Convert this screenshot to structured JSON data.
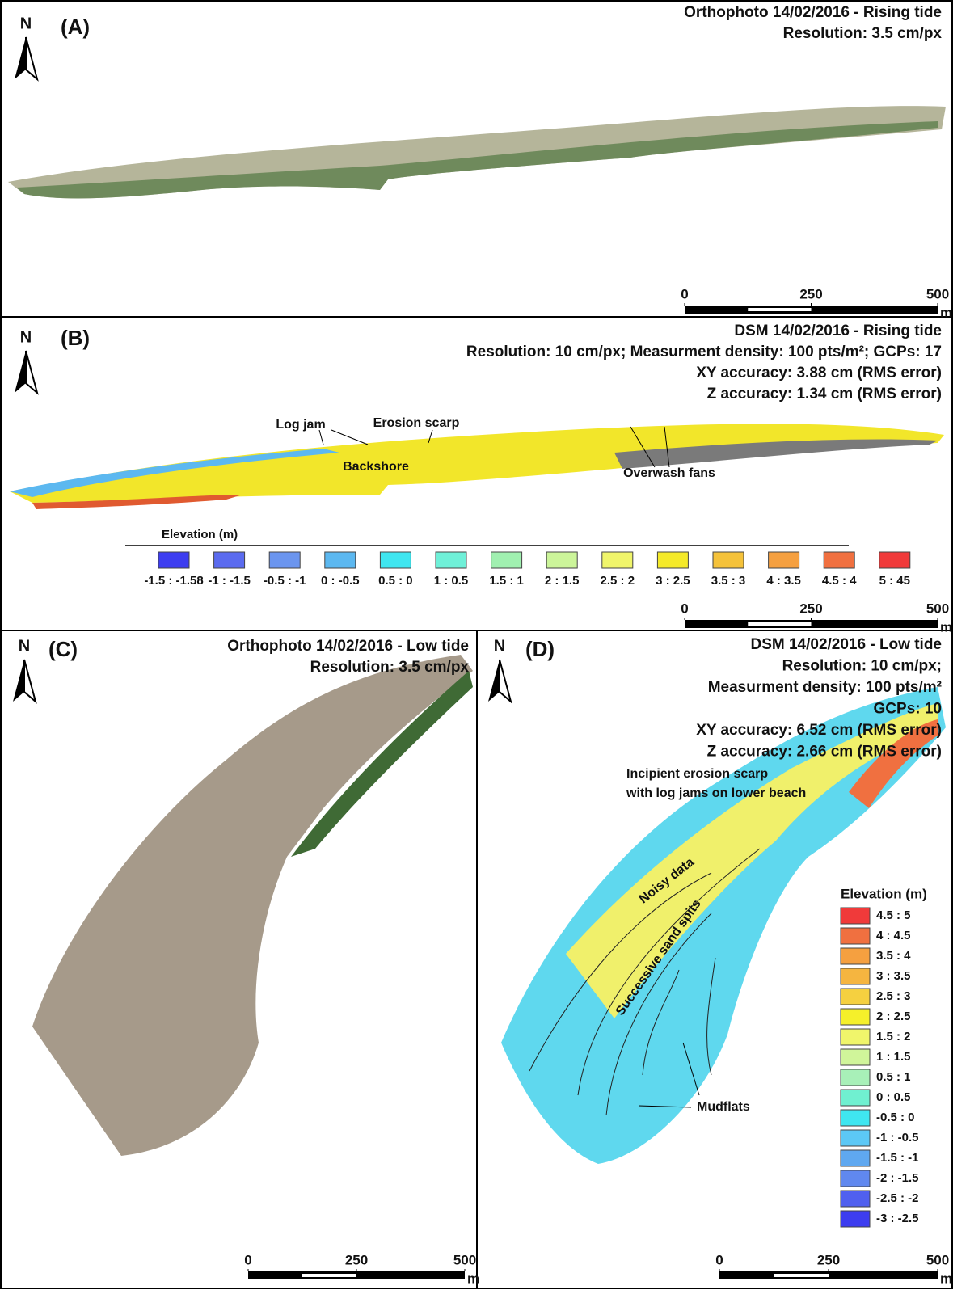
{
  "panels": [
    {
      "label": "(A)",
      "north": "N",
      "title": [
        "Orthophoto 14/02/2016 - Rising tide",
        "Resolution: 3.5 cm/px"
      ],
      "scale": {
        "ticks": [
          0,
          250,
          500
        ],
        "unit": "m"
      }
    },
    {
      "label": "(B)",
      "north": "N",
      "title": [
        "DSM 14/02/2016 - Rising tide",
        "Resolution: 10 cm/px; Measurment density: 100 pts/m²; GCPs: 17",
        "XY accuracy: 3.88 cm (RMS error)",
        "Z accuracy: 1.34 cm (RMS error)"
      ],
      "annotations": [
        "Log jam",
        "Erosion scarp",
        "Backshore",
        "Overwash fans"
      ],
      "legend": {
        "title": "Elevation (m)",
        "items": [
          {
            "label": "-1.5 : -1.58",
            "color": "#3d3df0"
          },
          {
            "label": "-1 : -1.5",
            "color": "#5b6bef"
          },
          {
            "label": "-0.5 : -1",
            "color": "#6b95ef"
          },
          {
            "label": "0 : -0.5",
            "color": "#5cb8f0"
          },
          {
            "label": "0.5 : 0",
            "color": "#3fe6f0"
          },
          {
            "label": "1 : 0.5",
            "color": "#6ff0d8"
          },
          {
            "label": "1.5 : 1",
            "color": "#a0f0b0"
          },
          {
            "label": "2 : 1.5",
            "color": "#ccf59a"
          },
          {
            "label": "2.5 : 2",
            "color": "#f0f56b"
          },
          {
            "label": "3 : 2.5",
            "color": "#f5ea2a"
          },
          {
            "label": "3.5 : 3",
            "color": "#f5c23a"
          },
          {
            "label": "4 : 3.5",
            "color": "#f5a040"
          },
          {
            "label": "4.5 : 4",
            "color": "#f07040"
          },
          {
            "label": "5 : 45",
            "color": "#f03a3a"
          }
        ]
      },
      "scale": {
        "ticks": [
          0,
          250,
          500
        ],
        "unit": "m"
      }
    },
    {
      "label": "(C)",
      "north": "N",
      "title": [
        "Orthophoto 14/02/2016 - Low tide",
        "Resolution: 3.5 cm/px"
      ],
      "scale": {
        "ticks": [
          0,
          250,
          500
        ],
        "unit": "m"
      }
    },
    {
      "label": "(D)",
      "north": "N",
      "title": [
        "DSM 14/02/2016 - Low tide",
        "Resolution: 10 cm/px;",
        "Measurment density: 100 pts/m²",
        "GCPs: 10",
        "XY accuracy: 6.52 cm (RMS error)",
        "Z accuracy: 2.66 cm (RMS error)"
      ],
      "annotations": [
        "Incipient erosion scarp",
        "with log jams on lower beach",
        "Noisy data",
        "Successive sand spits",
        "Mudflats"
      ],
      "legend": {
        "title": "Elevation (m)",
        "items": [
          {
            "label": "4.5 : 5",
            "color": "#f03a3a"
          },
          {
            "label": "4 : 4.5",
            "color": "#f07040"
          },
          {
            "label": "3.5 : 4",
            "color": "#f5a040"
          },
          {
            "label": "3 : 3.5",
            "color": "#f5b540"
          },
          {
            "label": "2.5 : 3",
            "color": "#f5d040"
          },
          {
            "label": "2 : 2.5",
            "color": "#f5f02a"
          },
          {
            "label": "1.5 : 2",
            "color": "#f0f56b"
          },
          {
            "label": "1 : 1.5",
            "color": "#d0f59a"
          },
          {
            "label": "0.5 : 1",
            "color": "#a8f0b8"
          },
          {
            "label": "0 : 0.5",
            "color": "#70f0d0"
          },
          {
            "label": "-0.5 : 0",
            "color": "#3fe6f0"
          },
          {
            "label": "-1 : -0.5",
            "color": "#5cc8f5"
          },
          {
            "label": "-1.5 : -1",
            "color": "#5fa8f0"
          },
          {
            "label": "-2 : -1.5",
            "color": "#6088ef"
          },
          {
            "label": "-2.5 : -2",
            "color": "#5060ef"
          },
          {
            "label": "-3 : -2.5",
            "color": "#3d3df0"
          }
        ]
      },
      "scale": {
        "ticks": [
          0,
          250,
          500
        ],
        "unit": "m"
      }
    }
  ]
}
